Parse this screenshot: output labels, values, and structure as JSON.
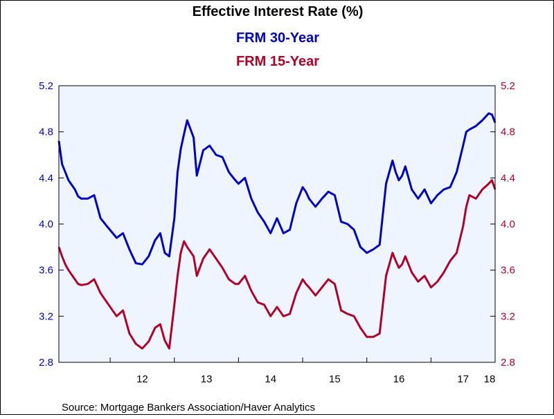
{
  "chart_data": {
    "type": "line",
    "title": "Effective Interest Rate (%)",
    "xlabel": "",
    "ylabel": "",
    "x_tick_labels": [
      "12",
      "13",
      "14",
      "15",
      "16",
      "17",
      "18"
    ],
    "y_ticks": [
      2.8,
      3.2,
      3.6,
      4.0,
      4.4,
      4.8,
      5.2
    ],
    "y_tick_labels": [
      "2.8",
      "3.2",
      "3.6",
      "4.0",
      "4.4",
      "4.8",
      "5.2"
    ],
    "ylim": [
      2.8,
      5.2
    ],
    "xlim": [
      2011.2,
      2018.0
    ],
    "grid": false,
    "legend_placement": "top-center",
    "source": "Source:  Mortgage Bankers Association/Haver Analytics",
    "colors": {
      "frm30": "#0000c0",
      "frm15": "#b00028",
      "plot_bg": "#eef5ff",
      "axis": "#000000"
    },
    "series": [
      {
        "name": "FRM 30-Year",
        "axis": "left",
        "x": [
          2011.2,
          2011.25,
          2011.3,
          2011.35,
          2011.45,
          2011.5,
          2011.55,
          2011.65,
          2011.75,
          2011.85,
          2011.95,
          2012.1,
          2012.2,
          2012.3,
          2012.4,
          2012.5,
          2012.6,
          2012.7,
          2012.78,
          2012.85,
          2012.92,
          2013.0,
          2013.05,
          2013.1,
          2013.15,
          2013.2,
          2013.3,
          2013.35,
          2013.45,
          2013.55,
          2013.65,
          2013.75,
          2013.85,
          2013.95,
          2014.0,
          2014.1,
          2014.2,
          2014.3,
          2014.4,
          2014.5,
          2014.6,
          2014.7,
          2014.8,
          2014.9,
          2015.0,
          2015.05,
          2015.1,
          2015.2,
          2015.3,
          2015.4,
          2015.5,
          2015.6,
          2015.7,
          2015.8,
          2015.9,
          2016.0,
          2016.1,
          2016.2,
          2016.3,
          2016.4,
          2016.45,
          2016.5,
          2016.55,
          2016.6,
          2016.7,
          2016.8,
          2016.9,
          2017.0,
          2017.1,
          2017.2,
          2017.3,
          2017.4,
          2017.5,
          2017.55,
          2017.6,
          2017.7,
          2017.8,
          2017.9,
          2017.95,
          2018.0
        ],
        "values": [
          4.72,
          4.52,
          4.45,
          4.38,
          4.3,
          4.24,
          4.22,
          4.22,
          4.25,
          4.05,
          3.98,
          3.88,
          3.92,
          3.78,
          3.66,
          3.65,
          3.72,
          3.86,
          3.92,
          3.75,
          3.72,
          4.05,
          4.45,
          4.65,
          4.78,
          4.9,
          4.75,
          4.42,
          4.64,
          4.68,
          4.6,
          4.58,
          4.45,
          4.38,
          4.35,
          4.4,
          4.22,
          4.1,
          4.02,
          3.92,
          4.05,
          3.92,
          3.95,
          4.18,
          4.32,
          4.28,
          4.22,
          4.15,
          4.22,
          4.28,
          4.25,
          4.02,
          4.0,
          3.95,
          3.8,
          3.75,
          3.78,
          3.82,
          4.35,
          4.55,
          4.45,
          4.38,
          4.42,
          4.5,
          4.3,
          4.22,
          4.3,
          4.18,
          4.25,
          4.3,
          4.32,
          4.45,
          4.68,
          4.8,
          4.82,
          4.85,
          4.9,
          4.96,
          4.95,
          4.88
        ]
      },
      {
        "name": "FRM 15-Year",
        "axis": "right",
        "x": [
          2011.2,
          2011.25,
          2011.3,
          2011.35,
          2011.45,
          2011.5,
          2011.55,
          2011.65,
          2011.75,
          2011.85,
          2011.95,
          2012.1,
          2012.2,
          2012.3,
          2012.4,
          2012.5,
          2012.6,
          2012.7,
          2012.78,
          2012.85,
          2012.92,
          2013.0,
          2013.05,
          2013.1,
          2013.15,
          2013.2,
          2013.3,
          2013.35,
          2013.45,
          2013.55,
          2013.65,
          2013.75,
          2013.85,
          2013.95,
          2014.0,
          2014.1,
          2014.2,
          2014.3,
          2014.4,
          2014.5,
          2014.6,
          2014.7,
          2014.8,
          2014.9,
          2015.0,
          2015.05,
          2015.1,
          2015.2,
          2015.3,
          2015.4,
          2015.5,
          2015.6,
          2015.7,
          2015.8,
          2015.9,
          2016.0,
          2016.1,
          2016.2,
          2016.3,
          2016.4,
          2016.45,
          2016.5,
          2016.55,
          2016.6,
          2016.7,
          2016.8,
          2016.9,
          2017.0,
          2017.1,
          2017.2,
          2017.3,
          2017.4,
          2017.5,
          2017.55,
          2017.6,
          2017.7,
          2017.8,
          2017.9,
          2017.95,
          2018.0
        ],
        "values": [
          3.8,
          3.72,
          3.65,
          3.6,
          3.52,
          3.48,
          3.47,
          3.48,
          3.52,
          3.4,
          3.32,
          3.2,
          3.25,
          3.05,
          2.96,
          2.92,
          2.98,
          3.1,
          3.13,
          2.99,
          2.92,
          3.3,
          3.55,
          3.75,
          3.85,
          3.8,
          3.72,
          3.55,
          3.7,
          3.78,
          3.7,
          3.62,
          3.52,
          3.48,
          3.48,
          3.55,
          3.42,
          3.32,
          3.3,
          3.2,
          3.28,
          3.2,
          3.22,
          3.4,
          3.52,
          3.48,
          3.45,
          3.38,
          3.45,
          3.52,
          3.48,
          3.25,
          3.22,
          3.2,
          3.1,
          3.02,
          3.02,
          3.05,
          3.55,
          3.75,
          3.68,
          3.62,
          3.65,
          3.72,
          3.58,
          3.5,
          3.55,
          3.45,
          3.5,
          3.58,
          3.68,
          3.75,
          3.98,
          4.15,
          4.25,
          4.22,
          4.3,
          4.35,
          4.38,
          4.3
        ]
      }
    ]
  }
}
